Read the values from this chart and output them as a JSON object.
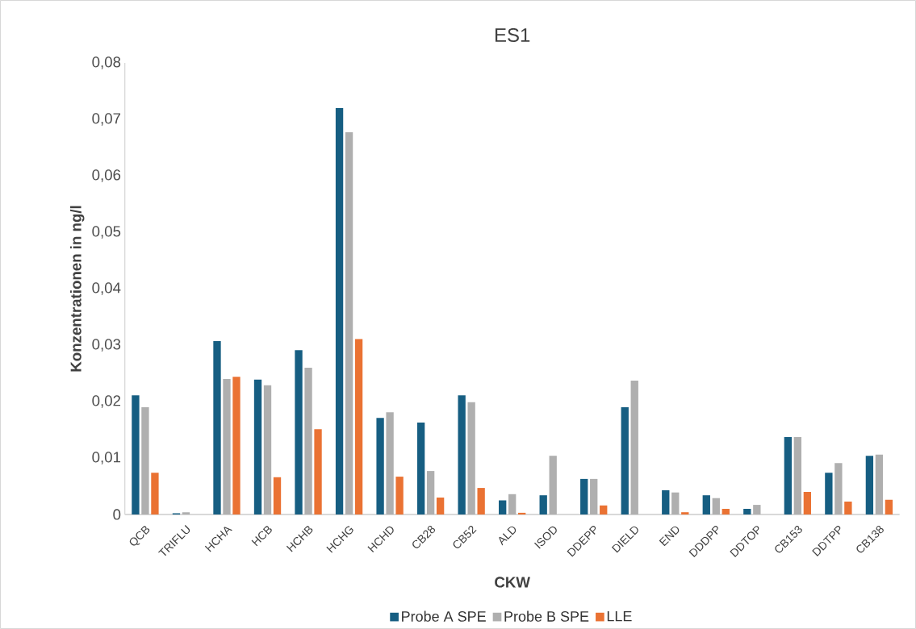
{
  "chart_data": {
    "type": "bar",
    "title": "ES1",
    "xlabel": "CKW",
    "ylabel": "Konzentrationen in ng/l",
    "categories": [
      "QCB",
      "TRIFLU",
      "HCHA",
      "HCB",
      "HCHB",
      "HCHG",
      "HCHD",
      "CB28",
      "CB52",
      "ALD",
      "ISOD",
      "DDEPP",
      "DIELD",
      "END",
      "DDDPP",
      "DDTOP",
      "CB153",
      "DDTPP",
      "CB138"
    ],
    "series": [
      {
        "name": "Probe A SPE",
        "color": "#165e82",
        "values": [
          0.0211,
          0.0002,
          0.0307,
          0.0239,
          0.0291,
          0.072,
          0.0171,
          0.0163,
          0.0211,
          0.0025,
          0.0034,
          0.0063,
          0.019,
          0.0043,
          0.0034,
          0.001,
          0.0137,
          0.0074,
          0.0104
        ]
      },
      {
        "name": "Probe B SPE",
        "color": "#afafaf",
        "values": [
          0.019,
          0.0004,
          0.024,
          0.0229,
          0.026,
          0.0677,
          0.0181,
          0.0077,
          0.0199,
          0.0036,
          0.0104,
          0.0063,
          0.0237,
          0.0039,
          0.0029,
          0.0017,
          0.0137,
          0.0091,
          0.0106
        ]
      },
      {
        "name": "LLE",
        "color": "#ea7233",
        "values": [
          0.0074,
          0,
          0.0244,
          0.0066,
          0.0151,
          0.0311,
          0.0067,
          0.003,
          0.0047,
          0.0003,
          0,
          0.0016,
          0,
          0.0004,
          0.001,
          0,
          0.004,
          0.0023,
          0.0026
        ]
      }
    ],
    "ylim": [
      0,
      0.08
    ],
    "yticks": [
      0,
      {
        "value": 0.01,
        "label": "0,01"
      },
      {
        "value": 0.02,
        "label": "0,02"
      },
      {
        "value": 0.03,
        "label": "0,03"
      },
      {
        "value": 0.04,
        "label": "0,04"
      },
      {
        "value": 0.05,
        "label": "0,05"
      },
      {
        "value": 0.06,
        "label": "0,06"
      },
      {
        "value": 0.07,
        "label": "0,07"
      },
      {
        "value": 0.08,
        "label": "0,08"
      }
    ],
    "grid": false,
    "legend": "bottom"
  }
}
